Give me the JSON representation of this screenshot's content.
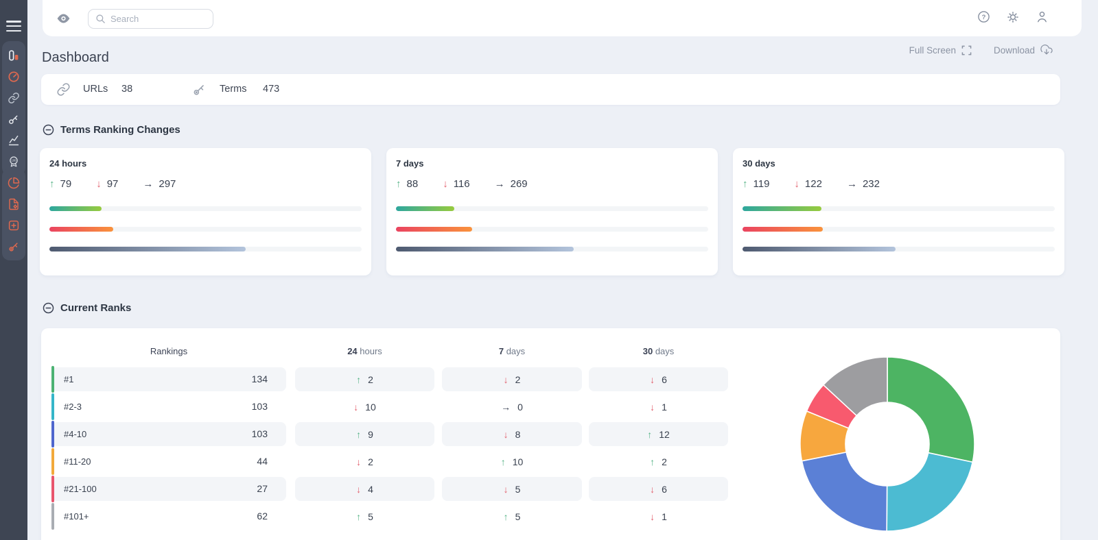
{
  "topbar": {
    "search_placeholder": "Search"
  },
  "header": {
    "title": "Dashboard",
    "full_screen_label": "Full Screen",
    "download_label": "Download"
  },
  "summary": {
    "urls_label": "URLs",
    "urls_value": "38",
    "terms_label": "Terms",
    "terms_value": "473"
  },
  "sections": {
    "ranking_changes_title": "Terms Ranking Changes",
    "current_ranks_title": "Current Ranks"
  },
  "colors": {
    "accent_orange": "#e0694f",
    "sidebar_bg": "#3e4553",
    "sidebar_group_bg": "#4a5263",
    "up_green": "#56b386",
    "down_red": "#e25f6c",
    "neutral_dark": "#3b4254",
    "muted_gray": "#8b93a3",
    "row_stripe": "#f3f5f8"
  },
  "sidebar": {
    "groups": [
      [
        {
          "name": "sidebar-item-dashboard",
          "icon": "dashboard-icon",
          "color": "#e9ecf1"
        },
        {
          "name": "sidebar-item-gauge",
          "icon": "gauge-icon",
          "color": "#e0694f"
        },
        {
          "name": "sidebar-item-links",
          "icon": "link-icon",
          "color": "#b9c0cb"
        },
        {
          "name": "sidebar-item-keywords",
          "icon": "key-icon",
          "color": "#e6e9ee"
        },
        {
          "name": "sidebar-item-analytics",
          "icon": "chart-icon",
          "color": "#dfe3e9"
        },
        {
          "name": "sidebar-item-score",
          "icon": "medal-icon",
          "color": "#dfe3e9"
        }
      ],
      [
        {
          "name": "sidebar-item-reports-pie",
          "icon": "pie-chart-icon",
          "color": "#e0694f"
        },
        {
          "name": "sidebar-item-report-file",
          "icon": "file-gear-icon",
          "color": "#e0694f"
        },
        {
          "name": "sidebar-item-add",
          "icon": "plus-square-icon",
          "color": "#e0694f"
        },
        {
          "name": "sidebar-item-access",
          "icon": "access-key-icon",
          "color": "#e0694f"
        }
      ]
    ]
  },
  "chart_data": [
    {
      "type": "bar",
      "name": "terms-ranking-changes",
      "title": "Terms Ranking Changes",
      "total_terms": 473,
      "cards": [
        {
          "period_num": "24",
          "period_unit": "hours",
          "up": 79,
          "down": 97,
          "same": 297
        },
        {
          "period_num": "7",
          "period_unit": "days",
          "up": 88,
          "down": 116,
          "same": 269
        },
        {
          "period_num": "30",
          "period_unit": "days",
          "up": 119,
          "down": 122,
          "same": 232
        }
      ],
      "bar_gradients": {
        "up": [
          "#2ea79e",
          "#97cb3e"
        ],
        "down": [
          "#ea4460",
          "#f9923c"
        ],
        "same": [
          "#4e5a70",
          "#b3c4dc"
        ]
      }
    },
    {
      "type": "table",
      "name": "current-ranks-table",
      "title": "Current Ranks",
      "columns": [
        {
          "label": "Rankings"
        },
        {
          "num": "24",
          "unit": "hours"
        },
        {
          "num": "7",
          "unit": "days"
        },
        {
          "num": "30",
          "unit": "days"
        }
      ],
      "rows": [
        {
          "label": "#1",
          "color": "#4cb273",
          "count": 134,
          "changes": [
            {
              "dir": "up",
              "value": 2
            },
            {
              "dir": "down",
              "value": 2
            },
            {
              "dir": "down",
              "value": 6
            }
          ]
        },
        {
          "label": "#2-3",
          "color": "#35b6c9",
          "count": 103,
          "changes": [
            {
              "dir": "down",
              "value": 10
            },
            {
              "dir": "same",
              "value": 0
            },
            {
              "dir": "down",
              "value": 1
            }
          ]
        },
        {
          "label": "#4-10",
          "color": "#4f66cd",
          "count": 103,
          "changes": [
            {
              "dir": "up",
              "value": 9
            },
            {
              "dir": "down",
              "value": 8
            },
            {
              "dir": "up",
              "value": 12
            }
          ]
        },
        {
          "label": "#11-20",
          "color": "#f2a93b",
          "count": 44,
          "changes": [
            {
              "dir": "down",
              "value": 2
            },
            {
              "dir": "up",
              "value": 10
            },
            {
              "dir": "up",
              "value": 2
            }
          ]
        },
        {
          "label": "#21-100",
          "color": "#e8556d",
          "count": 27,
          "changes": [
            {
              "dir": "down",
              "value": 4
            },
            {
              "dir": "down",
              "value": 5
            },
            {
              "dir": "down",
              "value": 6
            }
          ]
        },
        {
          "label": "#101+",
          "color": "#a9adb3",
          "count": 62,
          "changes": [
            {
              "dir": "up",
              "value": 5
            },
            {
              "dir": "up",
              "value": 5
            },
            {
              "dir": "down",
              "value": 1
            }
          ]
        }
      ]
    },
    {
      "type": "pie",
      "name": "current-ranks-donut",
      "labels": [
        "#1",
        "#2-3",
        "#4-10",
        "#11-20",
        "#21-100",
        "#101+"
      ],
      "values": [
        134,
        103,
        103,
        44,
        27,
        62
      ],
      "colors": [
        "#4db463",
        "#4cbbd2",
        "#5b80d6",
        "#f7a73e",
        "#f85a6e",
        "#9d9da0"
      ],
      "inner_radius_ratio": 0.48,
      "start_angle_deg": 0,
      "legend": "none"
    }
  ]
}
